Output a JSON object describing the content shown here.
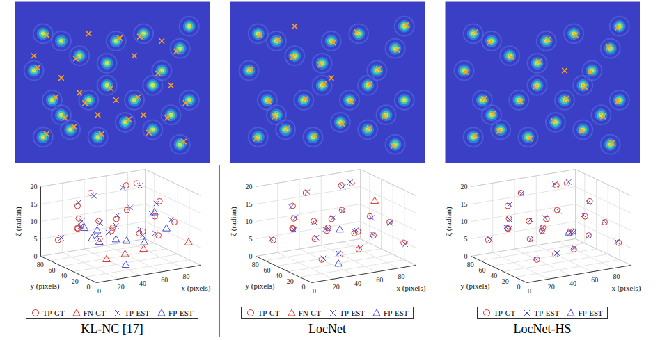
{
  "chart_data": [
    {
      "type": "scatter3d",
      "caption": "KL-NC [17]",
      "xlabel": "x (pixels)",
      "ylabel": "y (pixels)",
      "zlabel": "ζ (radian)",
      "xlim": [
        0,
        96
      ],
      "ylim": [
        0,
        96
      ],
      "zlim": [
        0,
        20
      ],
      "xticks": [
        0,
        20,
        40,
        60,
        80
      ],
      "yticks": [
        0,
        20,
        40,
        60,
        80
      ],
      "zticks": [
        0,
        5,
        10,
        15,
        20
      ],
      "grid": true,
      "legend": "bottom",
      "series": [
        {
          "name": "TP-GT",
          "color": "#e0362c",
          "marker": "circle",
          "points": [
            [
              10,
              15,
              16
            ],
            [
              5,
              40,
              15
            ],
            [
              20,
              70,
              15.5
            ],
            [
              40,
              85,
              17
            ],
            [
              70,
              80,
              18
            ],
            [
              85,
              90,
              17
            ],
            [
              60,
              60,
              13
            ],
            [
              45,
              50,
              12
            ],
            [
              30,
              30,
              11
            ],
            [
              15,
              60,
              10
            ],
            [
              75,
              40,
              12
            ],
            [
              90,
              60,
              14
            ],
            [
              50,
              20,
              10
            ],
            [
              25,
              80,
              8
            ],
            [
              65,
              15,
              9
            ],
            [
              85,
              25,
              11
            ],
            [
              10,
              85,
              5
            ],
            [
              35,
              60,
              6
            ],
            [
              55,
              75,
              7
            ],
            [
              80,
              70,
              5
            ]
          ]
        },
        {
          "name": "FN-GT",
          "color": "#e0362c",
          "marker": "triangle",
          "points": [
            [
              20,
              20,
              4
            ],
            [
              45,
              35,
              3
            ],
            [
              70,
              50,
              2
            ],
            [
              90,
              10,
              6
            ]
          ]
        },
        {
          "name": "TP-EST",
          "color": "#4b4bd8",
          "marker": "x",
          "points": [
            [
              12,
              16,
              15.2
            ],
            [
              7,
              38,
              14.3
            ],
            [
              22,
              72,
              16.2
            ],
            [
              42,
              83,
              16.2
            ],
            [
              68,
              82,
              17.3
            ],
            [
              87,
              88,
              16.4
            ],
            [
              62,
              58,
              13.8
            ],
            [
              47,
              52,
              12.8
            ],
            [
              28,
              32,
              10.4
            ],
            [
              17,
              58,
              10.8
            ],
            [
              73,
              42,
              12.7
            ],
            [
              88,
              62,
              13.3
            ],
            [
              52,
              18,
              9.4
            ],
            [
              27,
              78,
              8.6
            ],
            [
              63,
              17,
              9.6
            ],
            [
              83,
              27,
              11.6
            ],
            [
              12,
              83,
              5.7
            ],
            [
              33,
              62,
              6.6
            ],
            [
              57,
              73,
              7.6
            ],
            [
              78,
              72,
              5.6
            ]
          ]
        },
        {
          "name": "FP-EST",
          "color": "#4b4bd8",
          "marker": "triangle",
          "points": [
            [
              5,
              30,
              13
            ],
            [
              30,
              55,
              9
            ],
            [
              40,
              70,
              4
            ],
            [
              60,
              30,
              6
            ],
            [
              65,
              70,
              3
            ],
            [
              80,
              50,
              12
            ],
            [
              20,
              45,
              8
            ],
            [
              50,
              60,
              5
            ],
            [
              35,
              15,
              2
            ],
            [
              75,
              20,
              10
            ]
          ]
        }
      ]
    },
    {
      "type": "scatter3d",
      "caption": "LocNet",
      "xlabel": "x (pixels)",
      "ylabel": "y (pixels)",
      "zlabel": "ζ (radian)",
      "xlim": [
        0,
        96
      ],
      "ylim": [
        0,
        96
      ],
      "zlim": [
        0,
        20
      ],
      "xticks": [
        0,
        20,
        40,
        60,
        80
      ],
      "yticks": [
        0,
        20,
        40,
        60,
        80
      ],
      "zticks": [
        0,
        5,
        10,
        15,
        20
      ],
      "grid": true,
      "legend": "bottom",
      "series": [
        {
          "name": "TP-GT",
          "color": "#e0362c",
          "marker": "circle",
          "points": [
            [
              10,
              15,
              16
            ],
            [
              5,
              40,
              15
            ],
            [
              20,
              70,
              15.5
            ],
            [
              40,
              85,
              17
            ],
            [
              70,
              80,
              18
            ],
            [
              85,
              90,
              17
            ],
            [
              60,
              60,
              13
            ],
            [
              45,
              50,
              12
            ],
            [
              30,
              30,
              11
            ],
            [
              15,
              60,
              10
            ],
            [
              75,
              40,
              12
            ],
            [
              50,
              20,
              10
            ],
            [
              25,
              80,
              8
            ],
            [
              65,
              15,
              9
            ],
            [
              85,
              25,
              11
            ],
            [
              10,
              85,
              5
            ],
            [
              35,
              60,
              6
            ],
            [
              55,
              75,
              7
            ],
            [
              80,
              70,
              5
            ],
            [
              20,
              20,
              4
            ],
            [
              45,
              35,
              3
            ],
            [
              70,
              50,
              2
            ],
            [
              90,
              10,
              6
            ]
          ]
        },
        {
          "name": "FN-GT",
          "color": "#e0362c",
          "marker": "triangle",
          "points": [
            [
              90,
              60,
              14
            ]
          ]
        },
        {
          "name": "TP-EST",
          "color": "#4b4bd8",
          "marker": "x",
          "points": [
            [
              11,
              16,
              15.6
            ],
            [
              6,
              39,
              15.3
            ],
            [
              19,
              71,
              15.2
            ],
            [
              41,
              84,
              17.3
            ],
            [
              71,
              79,
              17.6
            ],
            [
              84,
              91,
              17.3
            ],
            [
              61,
              61,
              12.6
            ],
            [
              46,
              49,
              12.4
            ],
            [
              29,
              31,
              11.4
            ],
            [
              16,
              61,
              9.6
            ],
            [
              76,
              39,
              11.6
            ],
            [
              51,
              21,
              10.3
            ],
            [
              26,
              79,
              7.6
            ],
            [
              64,
              14,
              9.4
            ],
            [
              86,
              26,
              10.6
            ],
            [
              9,
              86,
              5.3
            ],
            [
              36,
              59,
              6.4
            ],
            [
              56,
              76,
              6.6
            ],
            [
              79,
              71,
              5.4
            ],
            [
              21,
              19,
              4.4
            ],
            [
              44,
              36,
              3.3
            ],
            [
              71,
              49,
              2.4
            ],
            [
              91,
              9,
              5.6
            ]
          ]
        },
        {
          "name": "FP-EST",
          "color": "#4b4bd8",
          "marker": "triangle",
          "points": [
            [
              50,
              45,
              9
            ],
            [
              30,
              10,
              3
            ]
          ]
        }
      ]
    },
    {
      "type": "scatter3d",
      "caption": "LocNet-HS",
      "xlabel": "x (pixels)",
      "ylabel": "y (pixels)",
      "zlabel": "ζ (radian)",
      "xlim": [
        0,
        96
      ],
      "ylim": [
        0,
        96
      ],
      "zlim": [
        0,
        20
      ],
      "xticks": [
        0,
        20,
        40,
        60,
        80
      ],
      "yticks": [
        0,
        20,
        40,
        60,
        80
      ],
      "zticks": [
        0,
        5,
        10,
        15,
        20
      ],
      "grid": true,
      "legend": "bottom",
      "series": [
        {
          "name": "TP-GT",
          "color": "#e0362c",
          "marker": "circle",
          "points": [
            [
              10,
              15,
              16
            ],
            [
              5,
              40,
              15
            ],
            [
              20,
              70,
              15.5
            ],
            [
              40,
              85,
              17
            ],
            [
              70,
              80,
              18
            ],
            [
              85,
              90,
              17
            ],
            [
              60,
              60,
              13
            ],
            [
              45,
              50,
              12
            ],
            [
              30,
              30,
              11
            ],
            [
              15,
              60,
              10
            ],
            [
              75,
              40,
              12
            ],
            [
              90,
              60,
              14
            ],
            [
              50,
              20,
              10
            ],
            [
              25,
              80,
              8
            ],
            [
              65,
              15,
              9
            ],
            [
              85,
              25,
              11
            ],
            [
              10,
              85,
              5
            ],
            [
              35,
              60,
              6
            ],
            [
              55,
              75,
              7
            ],
            [
              80,
              70,
              5
            ],
            [
              20,
              20,
              4
            ],
            [
              45,
              35,
              3
            ],
            [
              70,
              50,
              2
            ],
            [
              90,
              10,
              6
            ]
          ]
        },
        {
          "name": "TP-EST",
          "color": "#4b4bd8",
          "marker": "x",
          "points": [
            [
              11,
              14,
              16.4
            ],
            [
              6,
              41,
              14.6
            ],
            [
              21,
              69,
              15.9
            ],
            [
              41,
              86,
              16.7
            ],
            [
              69,
              81,
              18.3
            ],
            [
              86,
              89,
              17.4
            ],
            [
              61,
              59,
              12.7
            ],
            [
              44,
              51,
              12.3
            ],
            [
              31,
              31,
              10.7
            ],
            [
              16,
              59,
              10.3
            ],
            [
              74,
              41,
              12.4
            ],
            [
              89,
              61,
              13.6
            ],
            [
              51,
              19,
              10.4
            ],
            [
              24,
              81,
              8.3
            ],
            [
              66,
              16,
              8.7
            ],
            [
              84,
              24,
              11.3
            ],
            [
              11,
              84,
              5.4
            ],
            [
              36,
              61,
              5.7
            ],
            [
              54,
              74,
              7.3
            ],
            [
              81,
              71,
              4.6
            ],
            [
              19,
              21,
              4.3
            ],
            [
              46,
              34,
              3.4
            ],
            [
              71,
              51,
              2.3
            ],
            [
              89,
              11,
              6.3
            ]
          ]
        },
        {
          "name": "FP-EST",
          "color": "#4b4bd8",
          "marker": "triangle",
          "points": [
            [
              60,
              40,
              8
            ]
          ]
        }
      ]
    }
  ]
}
